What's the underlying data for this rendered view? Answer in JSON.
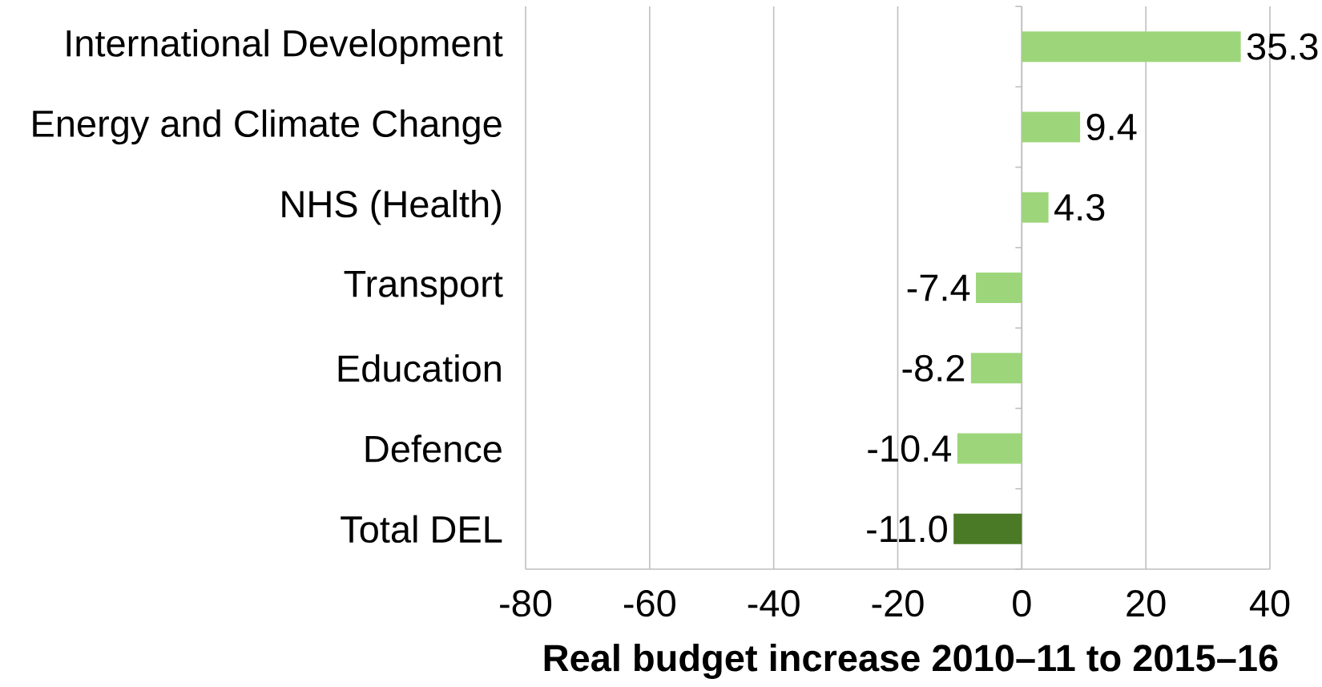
{
  "chart_data": {
    "type": "bar",
    "orientation": "horizontal",
    "xlabel": "Real budget increase 2010–11 to 2015–16",
    "categories": [
      "International Development",
      "Energy and Climate Change",
      "NHS (Health)",
      "Transport",
      "Education",
      "Defence",
      "Total DEL"
    ],
    "values": [
      35.3,
      9.4,
      4.3,
      -7.4,
      -8.2,
      -10.4,
      -11.0
    ],
    "value_labels": [
      "35.3",
      "9.4",
      "4.3",
      "-7.4",
      "-8.2",
      "-10.4",
      "-11.0"
    ],
    "colors": [
      "#9dd67a",
      "#9dd67a",
      "#9dd67a",
      "#9dd67a",
      "#9dd67a",
      "#9dd67a",
      "#4a7a25"
    ],
    "xlim": [
      -80,
      40
    ],
    "xticks": [
      -80,
      -60,
      -40,
      -20,
      0,
      20,
      40
    ],
    "grid": "x"
  }
}
